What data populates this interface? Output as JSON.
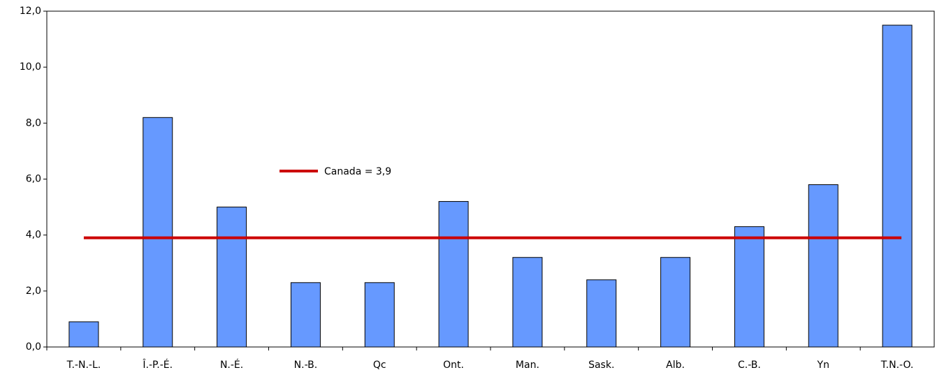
{
  "chart_data": {
    "type": "bar",
    "categories": [
      "T.-N.-L.",
      "Î.-P.-É.",
      "N.-É.",
      "N.-B.",
      "Qc",
      "Ont.",
      "Man.",
      "Sask.",
      "Alb.",
      "C.-B.",
      "Yn",
      "T.N.-O."
    ],
    "values": [
      0.9,
      8.2,
      5.0,
      2.3,
      2.3,
      5.2,
      3.2,
      2.4,
      3.2,
      4.3,
      5.8,
      11.5
    ],
    "color": "#6699ff",
    "ylim": [
      0,
      12
    ],
    "yticks": [
      {
        "value": 0,
        "label": "0,0"
      },
      {
        "value": 2,
        "label": "2,0"
      },
      {
        "value": 4,
        "label": "4,0"
      },
      {
        "value": 6,
        "label": "6,0"
      },
      {
        "value": 8,
        "label": "8,0"
      },
      {
        "value": 10,
        "label": "10,0"
      },
      {
        "value": 12,
        "label": "12,0"
      }
    ],
    "grid": false,
    "reference_line": {
      "label": "Canada = 3,9",
      "value": 3.9,
      "color": "#cc0000"
    }
  }
}
